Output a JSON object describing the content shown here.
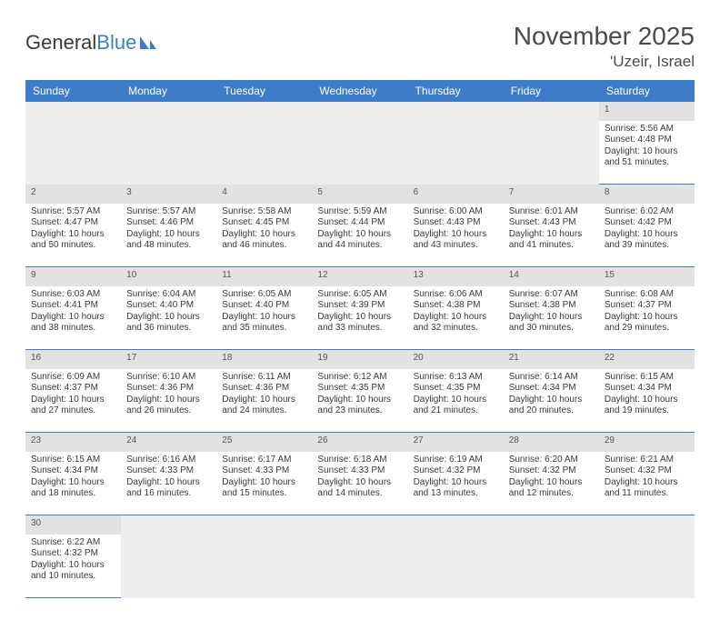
{
  "brand": {
    "part1": "General",
    "part2": "Blue"
  },
  "title": {
    "month": "November 2025",
    "location": "'Uzeir, Israel"
  },
  "colors": {
    "header_bg": "#3d7cc9",
    "header_text": "#ffffff",
    "daynum_bg": "#e2e2e2",
    "empty_bg": "#eeeeee",
    "row_border": "#3d7cc9",
    "text": "#3a3a3a"
  },
  "weekdays": [
    "Sunday",
    "Monday",
    "Tuesday",
    "Wednesday",
    "Thursday",
    "Friday",
    "Saturday"
  ],
  "weeks": [
    [
      null,
      null,
      null,
      null,
      null,
      null,
      {
        "n": "1",
        "sunrise": "Sunrise: 5:56 AM",
        "sunset": "Sunset: 4:48 PM",
        "daylight": "Daylight: 10 hours and 51 minutes."
      }
    ],
    [
      {
        "n": "2",
        "sunrise": "Sunrise: 5:57 AM",
        "sunset": "Sunset: 4:47 PM",
        "daylight": "Daylight: 10 hours and 50 minutes."
      },
      {
        "n": "3",
        "sunrise": "Sunrise: 5:57 AM",
        "sunset": "Sunset: 4:46 PM",
        "daylight": "Daylight: 10 hours and 48 minutes."
      },
      {
        "n": "4",
        "sunrise": "Sunrise: 5:58 AM",
        "sunset": "Sunset: 4:45 PM",
        "daylight": "Daylight: 10 hours and 46 minutes."
      },
      {
        "n": "5",
        "sunrise": "Sunrise: 5:59 AM",
        "sunset": "Sunset: 4:44 PM",
        "daylight": "Daylight: 10 hours and 44 minutes."
      },
      {
        "n": "6",
        "sunrise": "Sunrise: 6:00 AM",
        "sunset": "Sunset: 4:43 PM",
        "daylight": "Daylight: 10 hours and 43 minutes."
      },
      {
        "n": "7",
        "sunrise": "Sunrise: 6:01 AM",
        "sunset": "Sunset: 4:43 PM",
        "daylight": "Daylight: 10 hours and 41 minutes."
      },
      {
        "n": "8",
        "sunrise": "Sunrise: 6:02 AM",
        "sunset": "Sunset: 4:42 PM",
        "daylight": "Daylight: 10 hours and 39 minutes."
      }
    ],
    [
      {
        "n": "9",
        "sunrise": "Sunrise: 6:03 AM",
        "sunset": "Sunset: 4:41 PM",
        "daylight": "Daylight: 10 hours and 38 minutes."
      },
      {
        "n": "10",
        "sunrise": "Sunrise: 6:04 AM",
        "sunset": "Sunset: 4:40 PM",
        "daylight": "Daylight: 10 hours and 36 minutes."
      },
      {
        "n": "11",
        "sunrise": "Sunrise: 6:05 AM",
        "sunset": "Sunset: 4:40 PM",
        "daylight": "Daylight: 10 hours and 35 minutes."
      },
      {
        "n": "12",
        "sunrise": "Sunrise: 6:05 AM",
        "sunset": "Sunset: 4:39 PM",
        "daylight": "Daylight: 10 hours and 33 minutes."
      },
      {
        "n": "13",
        "sunrise": "Sunrise: 6:06 AM",
        "sunset": "Sunset: 4:38 PM",
        "daylight": "Daylight: 10 hours and 32 minutes."
      },
      {
        "n": "14",
        "sunrise": "Sunrise: 6:07 AM",
        "sunset": "Sunset: 4:38 PM",
        "daylight": "Daylight: 10 hours and 30 minutes."
      },
      {
        "n": "15",
        "sunrise": "Sunrise: 6:08 AM",
        "sunset": "Sunset: 4:37 PM",
        "daylight": "Daylight: 10 hours and 29 minutes."
      }
    ],
    [
      {
        "n": "16",
        "sunrise": "Sunrise: 6:09 AM",
        "sunset": "Sunset: 4:37 PM",
        "daylight": "Daylight: 10 hours and 27 minutes."
      },
      {
        "n": "17",
        "sunrise": "Sunrise: 6:10 AM",
        "sunset": "Sunset: 4:36 PM",
        "daylight": "Daylight: 10 hours and 26 minutes."
      },
      {
        "n": "18",
        "sunrise": "Sunrise: 6:11 AM",
        "sunset": "Sunset: 4:36 PM",
        "daylight": "Daylight: 10 hours and 24 minutes."
      },
      {
        "n": "19",
        "sunrise": "Sunrise: 6:12 AM",
        "sunset": "Sunset: 4:35 PM",
        "daylight": "Daylight: 10 hours and 23 minutes."
      },
      {
        "n": "20",
        "sunrise": "Sunrise: 6:13 AM",
        "sunset": "Sunset: 4:35 PM",
        "daylight": "Daylight: 10 hours and 21 minutes."
      },
      {
        "n": "21",
        "sunrise": "Sunrise: 6:14 AM",
        "sunset": "Sunset: 4:34 PM",
        "daylight": "Daylight: 10 hours and 20 minutes."
      },
      {
        "n": "22",
        "sunrise": "Sunrise: 6:15 AM",
        "sunset": "Sunset: 4:34 PM",
        "daylight": "Daylight: 10 hours and 19 minutes."
      }
    ],
    [
      {
        "n": "23",
        "sunrise": "Sunrise: 6:15 AM",
        "sunset": "Sunset: 4:34 PM",
        "daylight": "Daylight: 10 hours and 18 minutes."
      },
      {
        "n": "24",
        "sunrise": "Sunrise: 6:16 AM",
        "sunset": "Sunset: 4:33 PM",
        "daylight": "Daylight: 10 hours and 16 minutes."
      },
      {
        "n": "25",
        "sunrise": "Sunrise: 6:17 AM",
        "sunset": "Sunset: 4:33 PM",
        "daylight": "Daylight: 10 hours and 15 minutes."
      },
      {
        "n": "26",
        "sunrise": "Sunrise: 6:18 AM",
        "sunset": "Sunset: 4:33 PM",
        "daylight": "Daylight: 10 hours and 14 minutes."
      },
      {
        "n": "27",
        "sunrise": "Sunrise: 6:19 AM",
        "sunset": "Sunset: 4:32 PM",
        "daylight": "Daylight: 10 hours and 13 minutes."
      },
      {
        "n": "28",
        "sunrise": "Sunrise: 6:20 AM",
        "sunset": "Sunset: 4:32 PM",
        "daylight": "Daylight: 10 hours and 12 minutes."
      },
      {
        "n": "29",
        "sunrise": "Sunrise: 6:21 AM",
        "sunset": "Sunset: 4:32 PM",
        "daylight": "Daylight: 10 hours and 11 minutes."
      }
    ],
    [
      {
        "n": "30",
        "sunrise": "Sunrise: 6:22 AM",
        "sunset": "Sunset: 4:32 PM",
        "daylight": "Daylight: 10 hours and 10 minutes."
      },
      null,
      null,
      null,
      null,
      null,
      null
    ]
  ]
}
